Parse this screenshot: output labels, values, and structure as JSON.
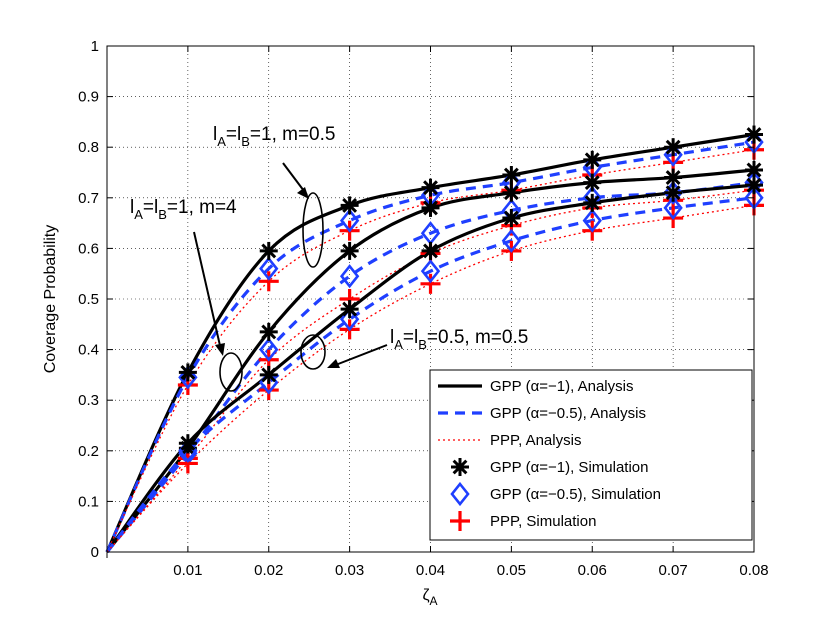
{
  "chart_data": {
    "type": "line",
    "title": "",
    "xlabel": "ζ",
    "xlabel_sub": "A",
    "ylabel": "Coverage Probability",
    "xlim": [
      0,
      0.08
    ],
    "ylim": [
      0,
      1
    ],
    "grid": true,
    "legend_position": "bottom-right",
    "x_ticks": [
      "0.01",
      "0.02",
      "0.03",
      "0.04",
      "0.05",
      "0.06",
      "0.07",
      "0.08"
    ],
    "y_ticks": [
      "0",
      "0.1",
      "0.2",
      "0.3",
      "0.4",
      "0.5",
      "0.6",
      "0.7",
      "0.8",
      "0.9",
      "1"
    ],
    "x": [
      0,
      0.01,
      0.02,
      0.03,
      0.04,
      0.05,
      0.06,
      0.07,
      0.08
    ],
    "legend": [
      {
        "label": "GPP (α=−1), Analysis",
        "style": "solid",
        "color": "#000000"
      },
      {
        "label": "GPP (α=−0.5), Analysis",
        "style": "dashed",
        "color": "#1f3fff"
      },
      {
        "label": "PPP, Analysis",
        "style": "dotted",
        "color": "#ff0000"
      },
      {
        "label": "GPP (α=−1), Simulation",
        "marker": "asterisk",
        "color": "#000000"
      },
      {
        "label": "GPP (α=−0.5), Simulation",
        "marker": "diamond",
        "color": "#1f3fff"
      },
      {
        "label": "PPP, Simulation",
        "marker": "plus",
        "color": "#ff0000"
      }
    ],
    "groups": [
      {
        "label": "l_A=l_B=1, m=0.5",
        "series": [
          {
            "name": "GPP (α=−1)",
            "values": [
              0,
              0.355,
              0.595,
              0.685,
              0.72,
              0.745,
              0.775,
              0.8,
              0.825
            ]
          },
          {
            "name": "GPP (α=−0.5)",
            "values": [
              0,
              0.345,
              0.56,
              0.655,
              0.705,
              0.73,
              0.76,
              0.785,
              0.81
            ]
          },
          {
            "name": "PPP",
            "values": [
              0,
              0.33,
              0.535,
              0.635,
              0.69,
              0.715,
              0.745,
              0.77,
              0.795
            ]
          }
        ]
      },
      {
        "label": "l_A=l_B=1, m=4",
        "series": [
          {
            "name": "GPP (α=−1)",
            "values": [
              0,
              0.205,
              0.435,
              0.595,
              0.68,
              0.71,
              0.73,
              0.74,
              0.755
            ]
          },
          {
            "name": "GPP (α=−0.5)",
            "values": [
              0,
              0.195,
              0.4,
              0.545,
              0.63,
              0.675,
              0.7,
              0.71,
              0.73
            ]
          },
          {
            "name": "PPP",
            "values": [
              0,
              0.185,
              0.38,
              0.5,
              0.59,
              0.645,
              0.68,
              0.695,
              0.715
            ]
          }
        ]
      },
      {
        "label": "l_A=l_B=0.5, m=0.5",
        "series": [
          {
            "name": "GPP (α=−1)",
            "values": [
              0,
              0.215,
              0.35,
              0.48,
              0.595,
              0.66,
              0.69,
              0.71,
              0.725
            ]
          },
          {
            "name": "GPP (α=−0.5)",
            "values": [
              0,
              0.2,
              0.335,
              0.46,
              0.555,
              0.615,
              0.655,
              0.68,
              0.7
            ]
          },
          {
            "name": "PPP",
            "values": [
              0,
              0.175,
              0.32,
              0.44,
              0.53,
              0.595,
              0.635,
              0.66,
              0.685
            ]
          }
        ]
      }
    ],
    "annotations": [
      {
        "pre": "l",
        "sub1": "A",
        "mid": "=l",
        "sub2": "B",
        "post": "=1, m=0.5"
      },
      {
        "pre": "l",
        "sub1": "A",
        "mid": "=l",
        "sub2": "B",
        "post": "=1, m=4"
      },
      {
        "pre": "l",
        "sub1": "A",
        "mid": "=l",
        "sub2": "B",
        "post": "=0.5, m=0.5"
      }
    ]
  }
}
